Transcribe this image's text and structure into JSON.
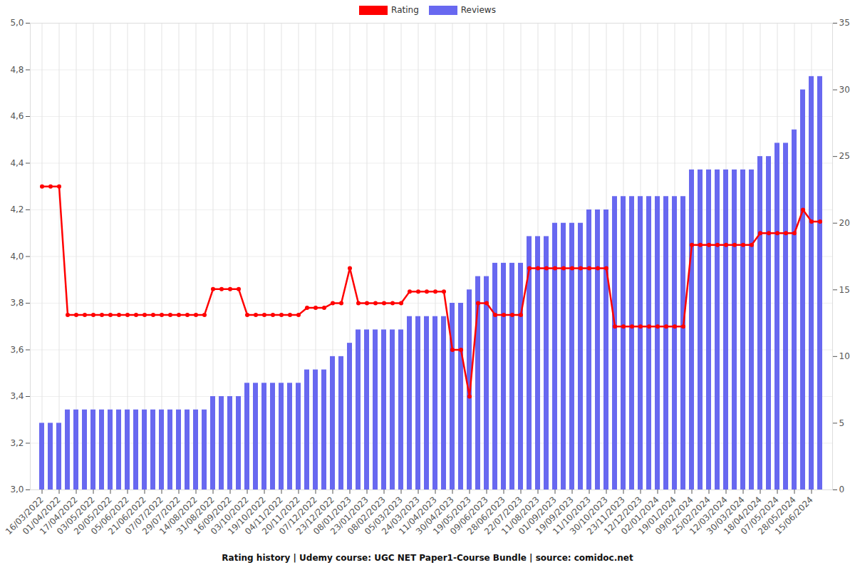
{
  "chart_data": {
    "type": "bar_line",
    "title": "Rating history | Udemy course: UGC NET Paper1-Course Bundle | source: comidoc.net",
    "categories": [
      "16/03/2022",
      null,
      "01/04/2022",
      null,
      "17/04/2022",
      null,
      "03/05/2022",
      null,
      "20/05/2022",
      null,
      "05/06/2022",
      null,
      "21/06/2022",
      null,
      "07/07/2022",
      null,
      "29/07/2022",
      null,
      "14/08/2022",
      null,
      "31/08/2022",
      null,
      "16/09/2022",
      null,
      "03/10/2022",
      null,
      "19/10/2022",
      null,
      "04/11/2022",
      null,
      "20/11/2022",
      null,
      "07/12/2022",
      null,
      "23/12/2022",
      null,
      "08/01/2023",
      null,
      "23/01/2023",
      null,
      "08/02/2023",
      null,
      "05/03/2023",
      null,
      "24/03/2023",
      null,
      "11/04/2023",
      null,
      "30/04/2023",
      null,
      "19/05/2023",
      null,
      "09/06/2023",
      null,
      "28/06/2023",
      null,
      "22/07/2023",
      null,
      "11/08/2023",
      null,
      "01/09/2023",
      null,
      "19/09/2023",
      null,
      "11/10/2023",
      null,
      "30/10/2023",
      null,
      "23/11/2023",
      null,
      "12/12/2023",
      null,
      "02/01/2024",
      null,
      "19/01/2024",
      null,
      "09/02/2024",
      null,
      "25/02/2024",
      null,
      "12/03/2024",
      null,
      "30/03/2024",
      null,
      "18/04/2024",
      null,
      "07/05/2024",
      null,
      "28/05/2024",
      null,
      "15/06/2024",
      null
    ],
    "series": [
      {
        "name": "Rating",
        "type": "line",
        "color": "#ff0000",
        "marker": "circle",
        "values": [
          4.3,
          4.3,
          4.3,
          3.75,
          3.75,
          3.75,
          3.75,
          3.75,
          3.75,
          3.75,
          3.75,
          3.75,
          3.75,
          3.75,
          3.75,
          3.75,
          3.75,
          3.75,
          3.75,
          3.75,
          3.86,
          3.86,
          3.86,
          3.86,
          3.75,
          3.75,
          3.75,
          3.75,
          3.75,
          3.75,
          3.75,
          3.78,
          3.78,
          3.78,
          3.8,
          3.8,
          3.95,
          3.8,
          3.8,
          3.8,
          3.8,
          3.8,
          3.8,
          3.85,
          3.85,
          3.85,
          3.85,
          3.85,
          3.6,
          3.6,
          3.4,
          3.8,
          3.8,
          3.75,
          3.75,
          3.75,
          3.75,
          3.95,
          3.95,
          3.95,
          3.95,
          3.95,
          3.95,
          3.95,
          3.95,
          3.95,
          3.95,
          3.7,
          3.7,
          3.7,
          3.7,
          3.7,
          3.7,
          3.7,
          3.7,
          3.7,
          4.05,
          4.05,
          4.05,
          4.05,
          4.05,
          4.05,
          4.05,
          4.05,
          4.1,
          4.1,
          4.1,
          4.1,
          4.1,
          4.2,
          4.15,
          4.15
        ]
      },
      {
        "name": "Reviews",
        "type": "bar",
        "color": "#6868f0",
        "axis": "y2",
        "values": [
          5,
          5,
          5,
          6,
          6,
          6,
          6,
          6,
          6,
          6,
          6,
          6,
          6,
          6,
          6,
          6,
          6,
          6,
          6,
          6,
          7,
          7,
          7,
          7,
          8,
          8,
          8,
          8,
          8,
          8,
          8,
          9,
          9,
          9,
          10,
          10,
          11,
          12,
          12,
          12,
          12,
          12,
          12,
          13,
          13,
          13,
          13,
          13,
          14,
          14,
          15,
          16,
          16,
          17,
          17,
          17,
          17,
          19,
          19,
          19,
          20,
          20,
          20,
          20,
          21,
          21,
          21,
          22,
          22,
          22,
          22,
          22,
          22,
          22,
          22,
          22,
          24,
          24,
          24,
          24,
          24,
          24,
          24,
          24,
          25,
          25,
          26,
          26,
          27,
          30,
          31,
          31
        ]
      }
    ],
    "ylim": [
      3,
      5
    ],
    "yticks": [
      {
        "value": 3,
        "label": "3,0"
      },
      {
        "value": 3.2,
        "label": "3,2"
      },
      {
        "value": 3.4,
        "label": "3,4"
      },
      {
        "value": 3.6,
        "label": "3,6"
      },
      {
        "value": 3.8,
        "label": "3,8"
      },
      {
        "value": 4,
        "label": "4,0"
      },
      {
        "value": 4.2,
        "label": "4,2"
      },
      {
        "value": 4.4,
        "label": "4,4"
      },
      {
        "value": 4.6,
        "label": "4,6"
      },
      {
        "value": 4.8,
        "label": "4,8"
      },
      {
        "value": 5,
        "label": "5,0"
      }
    ],
    "y2lim": [
      0,
      35
    ],
    "y2ticks": [
      0,
      5,
      10,
      15,
      20,
      25,
      30,
      35
    ],
    "grid": true,
    "legend": "top"
  }
}
